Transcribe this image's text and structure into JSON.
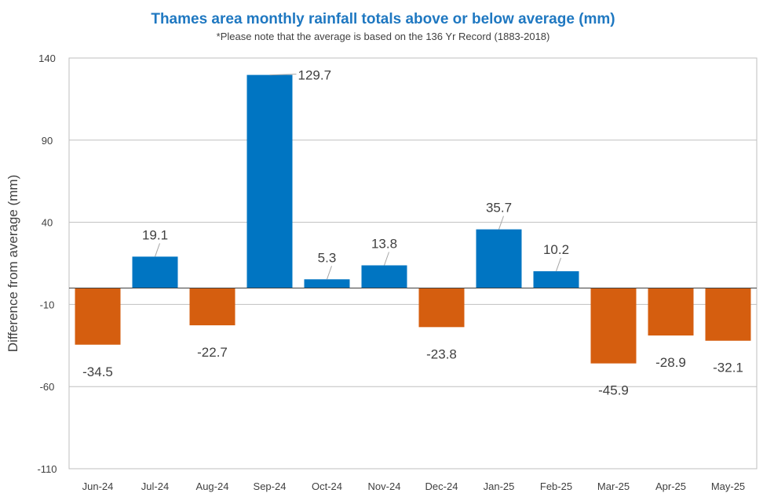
{
  "chart_data": {
    "type": "bar",
    "title": "Thames area monthly rainfall totals above or below average (mm)",
    "subtitle": "*Please note that the average is based on the 136 Yr Record (1883-2018)",
    "xlabel": "",
    "ylabel": "Difference from average (mm)",
    "ylim": [
      -110,
      140
    ],
    "yticks": [
      140,
      90,
      40,
      -10,
      -60,
      -110
    ],
    "grid": true,
    "categories": [
      "Jun-24",
      "Jul-24",
      "Aug-24",
      "Sep-24",
      "Oct-24",
      "Nov-24",
      "Dec-24",
      "Jan-25",
      "Feb-25",
      "Mar-25",
      "Apr-25",
      "May-25"
    ],
    "values": [
      -34.5,
      19.1,
      -22.7,
      129.7,
      5.3,
      13.8,
      -23.8,
      35.7,
      10.2,
      -45.9,
      -28.9,
      -32.1
    ],
    "value_labels": [
      "-34.5",
      "19.1",
      "-22.7",
      "129.7",
      "5.3",
      "13.8",
      "-23.8",
      "35.7",
      "10.2",
      "-45.9",
      "-28.9",
      "-32.1"
    ],
    "colors": {
      "positive": "#0075c2",
      "negative": "#d55e0f",
      "title": "#1f78c1",
      "grid": "#bfbfbf",
      "axis": "#404040"
    }
  }
}
